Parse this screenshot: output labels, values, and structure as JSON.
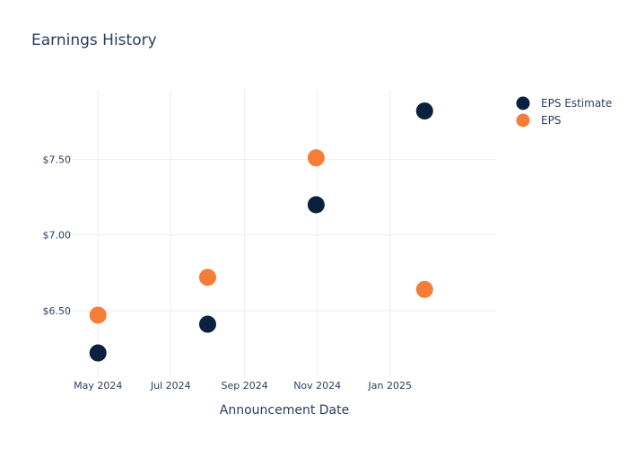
{
  "chart_data": {
    "type": "scatter",
    "title": "Earnings History",
    "xlabel": "Announcement Date",
    "ylabel": "",
    "x_ticks": [
      {
        "date": "2024-05-01",
        "label": "May 2024"
      },
      {
        "date": "2024-07-01",
        "label": "Jul 2024"
      },
      {
        "date": "2024-09-01",
        "label": "Sep 2024"
      },
      {
        "date": "2024-11-01",
        "label": "Nov 2024"
      },
      {
        "date": "2025-01-01",
        "label": "Jan 2025"
      }
    ],
    "y_ticks": [
      {
        "value": 6.5,
        "label": "$6.50"
      },
      {
        "value": 7.0,
        "label": "$7.00"
      },
      {
        "value": 7.5,
        "label": "$7.50"
      }
    ],
    "xlim": [
      "2024-04-09",
      "2025-03-31"
    ],
    "ylim": [
      6.06,
      7.96
    ],
    "grid": true,
    "legend_position": "top-right",
    "series": [
      {
        "name": "EPS Estimate",
        "color": "#0b1f3f",
        "points": [
          {
            "x": "2024-05-01",
            "y": 6.22
          },
          {
            "x": "2024-08-01",
            "y": 6.41
          },
          {
            "x": "2024-10-31",
            "y": 7.2
          },
          {
            "x": "2025-01-30",
            "y": 7.82
          }
        ]
      },
      {
        "name": "EPS",
        "color": "#f47d37",
        "points": [
          {
            "x": "2024-05-01",
            "y": 6.47
          },
          {
            "x": "2024-08-01",
            "y": 6.72
          },
          {
            "x": "2024-10-31",
            "y": 7.51
          },
          {
            "x": "2025-01-30",
            "y": 6.64
          }
        ]
      }
    ]
  }
}
